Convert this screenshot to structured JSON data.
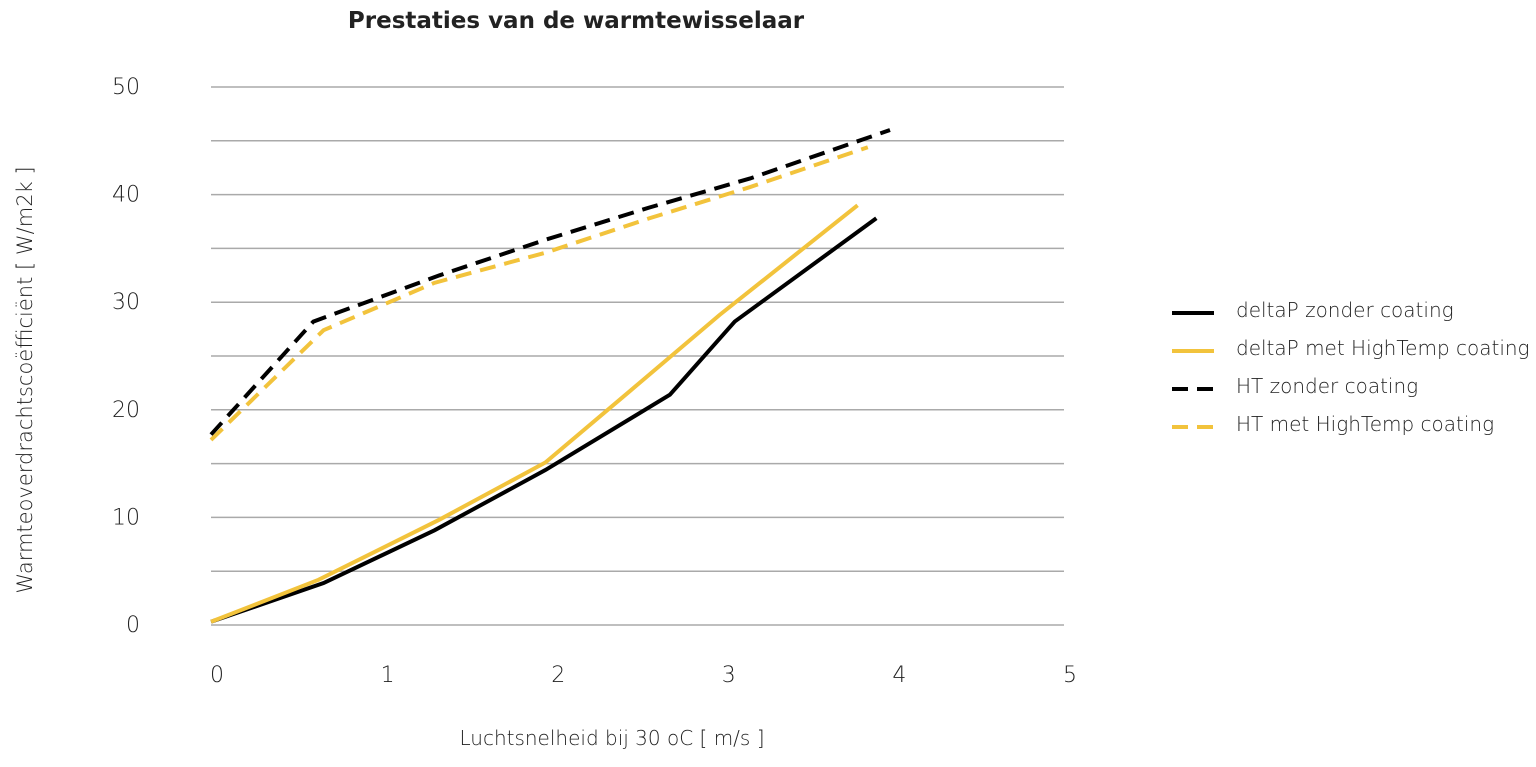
{
  "chart_data": {
    "type": "line",
    "title": "Prestaties van de warmtewisselaar",
    "x_label": "Luchtsnelheid bij 30 oC [ m/s ]",
    "y_label": "Warmteoverdrachtscoëfficiënt  [ W/m2k ]",
    "xlim": [
      0,
      5
    ],
    "xticks": [
      0,
      1,
      2,
      3,
      4,
      5
    ],
    "ylim": [
      0,
      50
    ],
    "yticks": [
      0,
      10,
      20,
      30,
      40,
      50
    ],
    "minor_yticks": [
      5,
      15,
      25,
      35,
      45
    ],
    "grid": true,
    "legend": "right",
    "series": [
      {
        "name": "deltaP zonder coating",
        "color": "#000000",
        "dash": false,
        "x": [
          0,
          0.66,
          1.31,
          1.96,
          2.69,
          3.07,
          3.9
        ],
        "values": [
          0.3,
          3.9,
          8.8,
          14.4,
          21.4,
          28.2,
          37.8
        ]
      },
      {
        "name": "deltaP met HighTemp coating",
        "color": "#f2c33c",
        "dash": false,
        "x": [
          0,
          0.63,
          1.34,
          1.96,
          2.46,
          2.98,
          3.79
        ],
        "values": [
          0.3,
          4.2,
          9.8,
          15.1,
          21.8,
          28.8,
          39.0
        ]
      },
      {
        "name": "HT zonder coating",
        "color": "#000000",
        "dash": true,
        "x": [
          0,
          0.6,
          1.34,
          1.96,
          2.57,
          3.16,
          3.98
        ],
        "values": [
          17.7,
          28.2,
          32.5,
          35.8,
          38.8,
          41.5,
          46
        ]
      },
      {
        "name": "HT met HighTemp coating",
        "color": "#f2c33c",
        "dash": true,
        "x": [
          0,
          0.66,
          1.31,
          1.96,
          2.57,
          3.16,
          3.85
        ],
        "values": [
          17.2,
          27.4,
          31.8,
          34.6,
          37.8,
          40.7,
          44.4
        ]
      }
    ]
  }
}
